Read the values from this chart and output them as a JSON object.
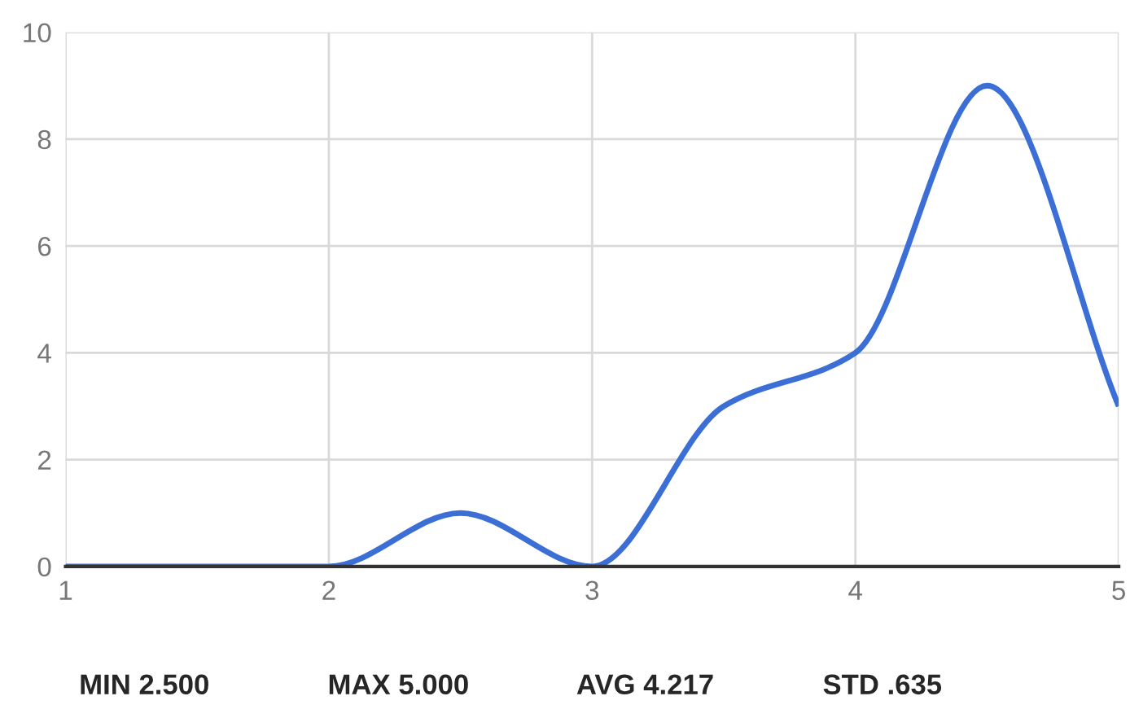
{
  "chart_data": {
    "type": "line",
    "x": [
      1,
      1.5,
      2,
      2.5,
      3,
      3.5,
      4,
      4.5,
      5
    ],
    "series": [
      {
        "color": "#3c6fd6",
        "values": [
          0,
          0,
          0,
          1,
          0,
          3,
          4,
          9,
          3
        ]
      }
    ],
    "xlim": [
      1,
      5
    ],
    "xticks": [
      1,
      2,
      3,
      4,
      5
    ],
    "ylim": [
      0,
      10
    ],
    "yticks": [
      0,
      2,
      4,
      6,
      8,
      10
    ],
    "grid": true,
    "legend": false,
    "marker": "none",
    "line_style": "solid",
    "annotations": [
      "MIN 2.500",
      "MAX 5.000",
      "AVG 4.217",
      "STD .635"
    ]
  }
}
